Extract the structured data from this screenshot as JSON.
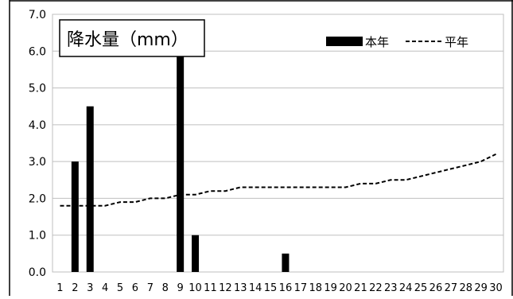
{
  "chart_data": {
    "type": "bar",
    "title": "降水量（mm）",
    "xlabel": "",
    "ylabel": "",
    "categories": [
      "1",
      "2",
      "3",
      "4",
      "5",
      "6",
      "7",
      "8",
      "9",
      "10",
      "11",
      "12",
      "13",
      "14",
      "15",
      "16",
      "17",
      "18",
      "19",
      "20",
      "21",
      "22",
      "23",
      "24",
      "25",
      "26",
      "27",
      "28",
      "29",
      "30"
    ],
    "series": [
      {
        "name": "本年",
        "type": "bar",
        "color": "#000000",
        "values": [
          0,
          3.0,
          4.5,
          0,
          0,
          0,
          0,
          0,
          6.0,
          1.0,
          0,
          0,
          0,
          0,
          0,
          0.5,
          0,
          0,
          0,
          0,
          0,
          0,
          0,
          0,
          0,
          0,
          0,
          0,
          0,
          0
        ]
      },
      {
        "name": "平年",
        "type": "line",
        "style": "dashed",
        "color": "#000000",
        "values": [
          1.8,
          1.8,
          1.8,
          1.8,
          1.9,
          1.9,
          2.0,
          2.0,
          2.1,
          2.1,
          2.2,
          2.2,
          2.3,
          2.3,
          2.3,
          2.3,
          2.3,
          2.3,
          2.3,
          2.3,
          2.4,
          2.4,
          2.5,
          2.5,
          2.6,
          2.7,
          2.8,
          2.9,
          3.0,
          3.2
        ]
      }
    ],
    "ylim": [
      0,
      7.0
    ],
    "yticks": [
      "0.0",
      "1.0",
      "2.0",
      "3.0",
      "4.0",
      "5.0",
      "6.0",
      "7.0"
    ],
    "grid": true,
    "legend_position": "top-right"
  }
}
